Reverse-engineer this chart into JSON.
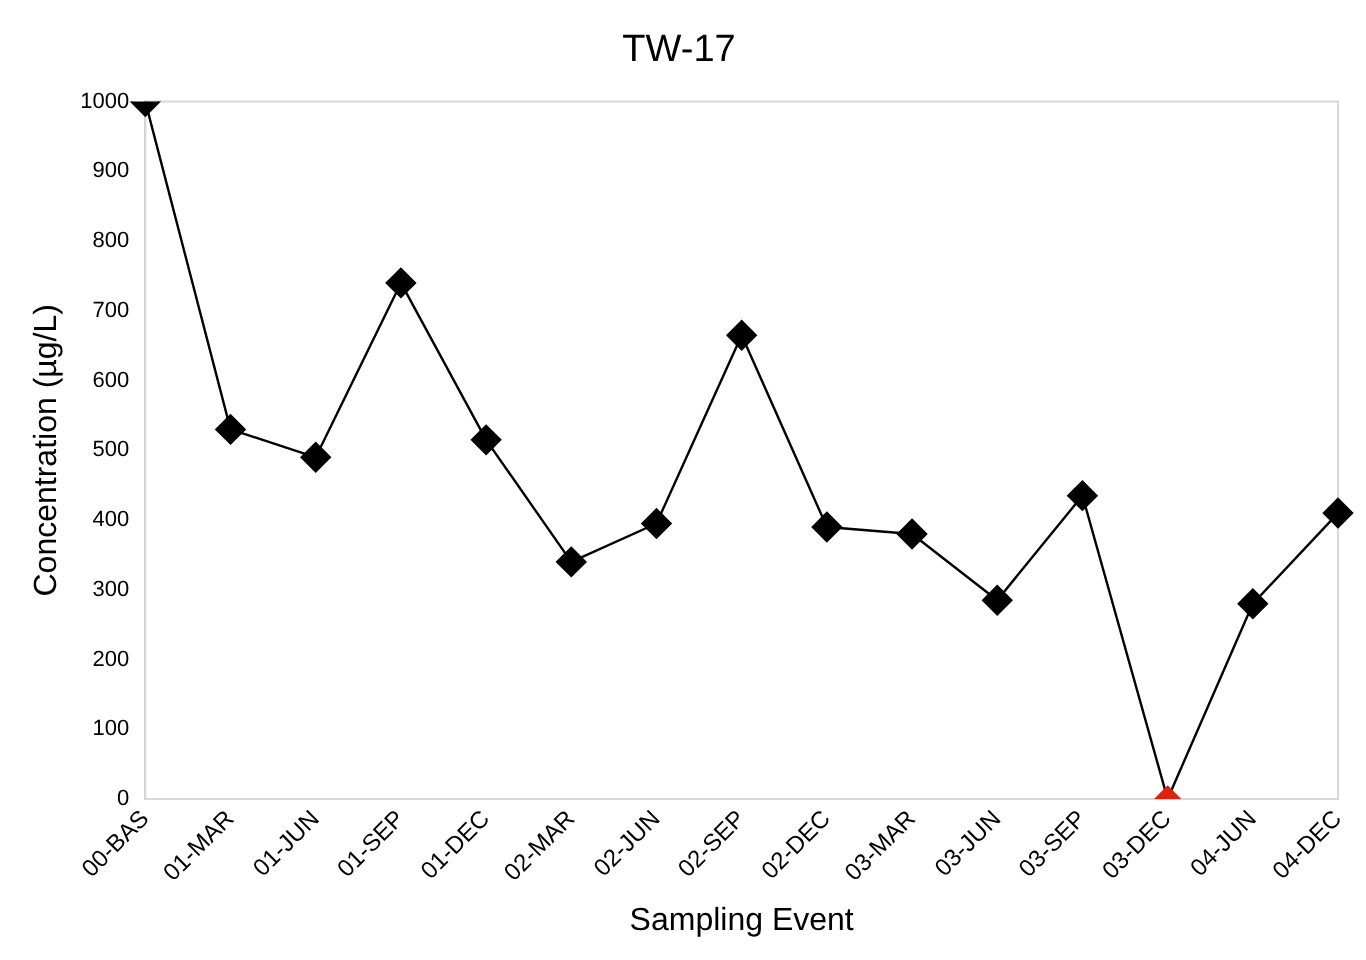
{
  "chart_data": {
    "type": "line",
    "title": "TW-17",
    "xlabel": "Sampling Event",
    "ylabel": "Concentration (µg/L)",
    "categories": [
      "00-BAS",
      "01-MAR",
      "01-JUN",
      "01-SEP",
      "01-DEC",
      "02-MAR",
      "02-JUN",
      "02-SEP",
      "02-DEC",
      "03-MAR",
      "03-JUN",
      "03-SEP",
      "03-DEC",
      "04-JUN",
      "04-DEC"
    ],
    "series": [
      {
        "color": "#000000",
        "colors": [
          "#000000",
          "#000000",
          "#000000",
          "#000000",
          "#000000",
          "#000000",
          "#000000",
          "#000000",
          "#000000",
          "#000000",
          "#000000",
          "#000000",
          "#e02010",
          "#000000",
          "#000000"
        ],
        "values": [
          1000,
          530,
          490,
          740,
          515,
          340,
          395,
          665,
          390,
          380,
          285,
          435,
          0,
          280,
          410
        ]
      }
    ],
    "ylim": [
      0,
      1000
    ],
    "yticks": [
      0,
      100,
      200,
      300,
      400,
      500,
      600,
      700,
      800,
      900,
      1000
    ],
    "grid": false,
    "legend": false,
    "marker": "diamond",
    "line_style": "solid"
  }
}
